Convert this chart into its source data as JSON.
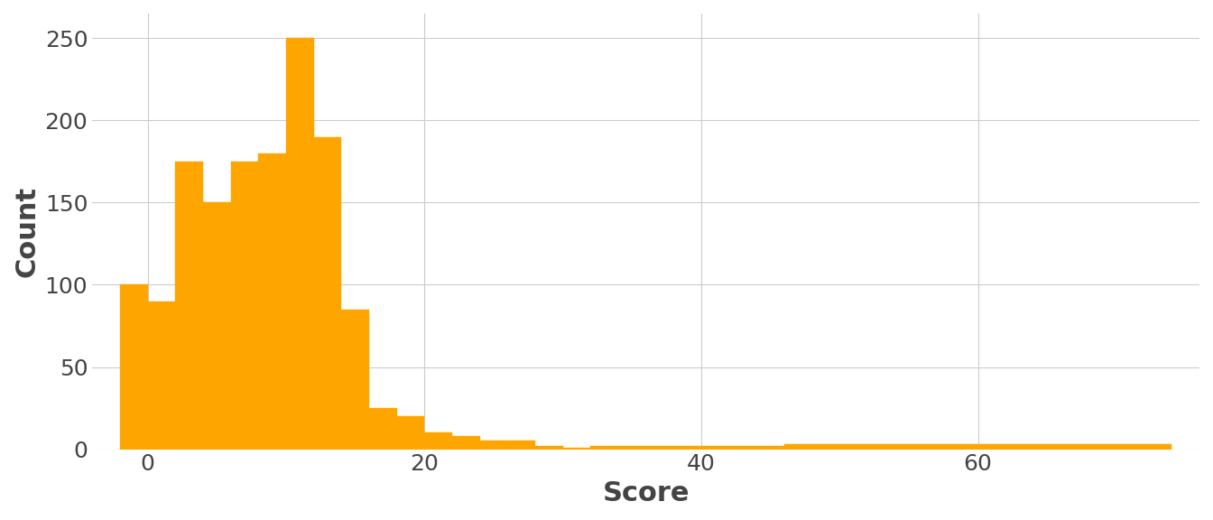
{
  "title": "",
  "xlabel": "Score",
  "ylabel": "Count",
  "bar_color": "#FFA500",
  "background_color": "#ffffff",
  "grid_color": "#cccccc",
  "xlim": [
    -4,
    76
  ],
  "ylim": [
    0,
    265
  ],
  "yticks": [
    0,
    50,
    100,
    150,
    200,
    250
  ],
  "xticks": [
    0,
    20,
    40,
    60
  ],
  "bin_edges": [
    -2,
    0,
    2,
    4,
    6,
    8,
    10,
    12,
    14,
    16,
    18,
    20,
    22,
    24,
    26,
    28,
    30,
    32,
    34,
    36,
    46,
    66,
    74
  ],
  "counts": [
    100,
    90,
    175,
    150,
    175,
    180,
    250,
    190,
    85,
    25,
    20,
    10,
    8,
    5,
    5,
    2,
    1,
    2,
    2,
    2,
    3,
    3
  ],
  "xlabel_fontsize": 22,
  "ylabel_fontsize": 22,
  "tick_fontsize": 18,
  "label_color": "#444444"
}
